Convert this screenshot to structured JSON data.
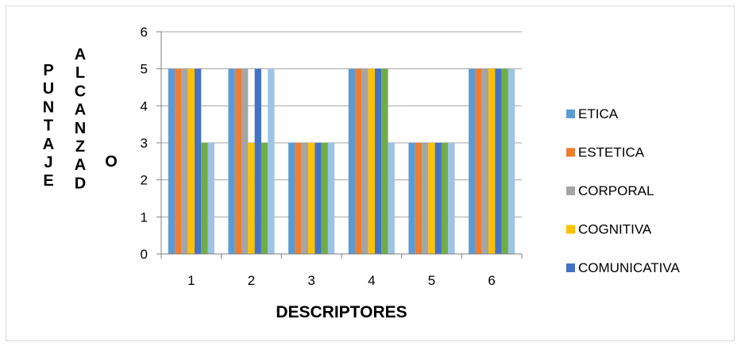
{
  "chart_data": {
    "type": "bar",
    "categories": [
      "1",
      "2",
      "3",
      "4",
      "5",
      "6"
    ],
    "xlabel": "DESCRIPTORES",
    "ylabel": "PUNTAJE ALCANZADO",
    "ylabel_columns": [
      "PUNTAJE",
      "ALCANZAD",
      "O"
    ],
    "ylim": [
      0,
      6
    ],
    "yticks": [
      0,
      1,
      2,
      3,
      4,
      5,
      6
    ],
    "grid": true,
    "legend_position": "right",
    "series": [
      {
        "name": "ETICA",
        "color": "#5b9bd5",
        "values": [
          5,
          5,
          3,
          5,
          3,
          5
        ]
      },
      {
        "name": "ESTETICA",
        "color": "#ed7d31",
        "values": [
          5,
          5,
          3,
          5,
          3,
          5
        ]
      },
      {
        "name": "CORPORAL",
        "color": "#a5a5a5",
        "values": [
          5,
          5,
          3,
          5,
          3,
          5
        ]
      },
      {
        "name": "COGNITIVA",
        "color": "#ffc000",
        "values": [
          5,
          3,
          3,
          5,
          3,
          5
        ]
      },
      {
        "name": "COMUNICATIVA",
        "color": "#4472c4",
        "values": [
          5,
          5,
          3,
          5,
          3,
          5
        ]
      },
      {
        "name": "",
        "color": "#70ad47",
        "values": [
          3,
          3,
          3,
          5,
          3,
          5
        ]
      },
      {
        "name": "",
        "color": "#9dc3e6",
        "values": [
          3,
          5,
          3,
          3,
          3,
          5
        ]
      }
    ]
  }
}
